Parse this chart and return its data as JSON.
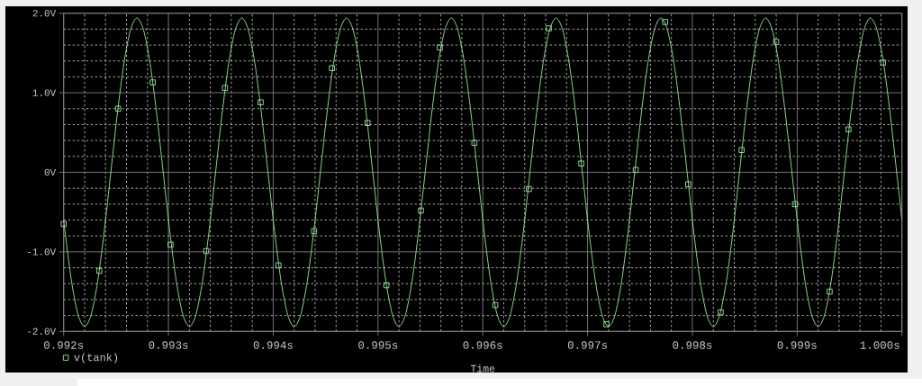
{
  "chart_data": {
    "type": "line",
    "xlabel": "Time",
    "xlim": [
      0.992,
      1.0
    ],
    "ylim": [
      -2.0,
      2.0
    ],
    "xticks": [
      {
        "value": 0.992,
        "label": "0.992s"
      },
      {
        "value": 0.9922,
        "label": null
      },
      {
        "value": 0.9924,
        "label": null
      },
      {
        "value": 0.9926,
        "label": null
      },
      {
        "value": 0.9928,
        "label": null
      },
      {
        "value": 0.993,
        "label": "0.993s"
      },
      {
        "value": 0.9932,
        "label": null
      },
      {
        "value": 0.9934,
        "label": null
      },
      {
        "value": 0.9936,
        "label": null
      },
      {
        "value": 0.9938,
        "label": null
      },
      {
        "value": 0.994,
        "label": "0.994s"
      },
      {
        "value": 0.9942,
        "label": null
      },
      {
        "value": 0.9944,
        "label": null
      },
      {
        "value": 0.9946,
        "label": null
      },
      {
        "value": 0.9948,
        "label": null
      },
      {
        "value": 0.995,
        "label": "0.995s"
      },
      {
        "value": 0.9952,
        "label": null
      },
      {
        "value": 0.9954,
        "label": null
      },
      {
        "value": 0.9956,
        "label": null
      },
      {
        "value": 0.9958,
        "label": null
      },
      {
        "value": 0.996,
        "label": "0.996s"
      },
      {
        "value": 0.9962,
        "label": null
      },
      {
        "value": 0.9964,
        "label": null
      },
      {
        "value": 0.9966,
        "label": null
      },
      {
        "value": 0.9968,
        "label": null
      },
      {
        "value": 0.997,
        "label": "0.997s"
      },
      {
        "value": 0.9972,
        "label": null
      },
      {
        "value": 0.9974,
        "label": null
      },
      {
        "value": 0.9976,
        "label": null
      },
      {
        "value": 0.9978,
        "label": null
      },
      {
        "value": 0.998,
        "label": "0.998s"
      },
      {
        "value": 0.9982,
        "label": null
      },
      {
        "value": 0.9984,
        "label": null
      },
      {
        "value": 0.9986,
        "label": null
      },
      {
        "value": 0.9988,
        "label": null
      },
      {
        "value": 0.999,
        "label": "0.999s"
      },
      {
        "value": 0.9992,
        "label": null
      },
      {
        "value": 0.9994,
        "label": null
      },
      {
        "value": 0.9996,
        "label": null
      },
      {
        "value": 0.9998,
        "label": null
      },
      {
        "value": 1.0,
        "label": "1.000s"
      }
    ],
    "yticks": [
      {
        "value": -2.0,
        "label": "-2.0V"
      },
      {
        "value": -1.8,
        "label": null
      },
      {
        "value": -1.6,
        "label": null
      },
      {
        "value": -1.4,
        "label": null
      },
      {
        "value": -1.2,
        "label": null
      },
      {
        "value": -1.0,
        "label": "-1.0V"
      },
      {
        "value": -0.8,
        "label": null
      },
      {
        "value": -0.6,
        "label": null
      },
      {
        "value": -0.4,
        "label": null
      },
      {
        "value": -0.2,
        "label": null
      },
      {
        "value": 0,
        "label": "0V"
      },
      {
        "value": 0.2,
        "label": null
      },
      {
        "value": 0.4,
        "label": null
      },
      {
        "value": 0.6,
        "label": null
      },
      {
        "value": 0.8,
        "label": null
      },
      {
        "value": 1.0,
        "label": "1.0V"
      },
      {
        "value": 1.2,
        "label": null
      },
      {
        "value": 1.4,
        "label": null
      },
      {
        "value": 1.6,
        "label": null
      },
      {
        "value": 1.8,
        "label": null
      },
      {
        "value": 2.0,
        "label": "2.0V"
      }
    ],
    "grid": true,
    "legend": "bottom left",
    "series": [
      {
        "name": "v(tank)",
        "color": "#9be89b",
        "x": [
          0.992,
          0.9920125,
          0.992075,
          0.9921375,
          0.9922,
          0.9922625,
          0.992325,
          0.9923875,
          0.99245,
          0.9925125,
          0.992575,
          0.9926375,
          0.9927,
          0.9927625,
          0.992825,
          0.9928875,
          0.99295,
          0.9930125,
          0.993075,
          0.9931375,
          0.9932,
          0.9932625,
          0.993325,
          0.9933875,
          0.99345,
          0.9935125,
          0.993575,
          0.9936375,
          0.9937,
          0.9937625,
          0.993825,
          0.9938875,
          0.99395,
          0.9940125,
          0.994075,
          0.9941375,
          0.9942,
          0.9942625,
          0.994325,
          0.9943875,
          0.99445,
          0.9945125,
          0.994575,
          0.9946375,
          0.9947,
          0.9947625,
          0.994825,
          0.9948875,
          0.99495,
          0.9950125,
          0.995075,
          0.9951375,
          0.9952,
          0.9952625,
          0.995325,
          0.9953875,
          0.99545,
          0.9955125,
          0.995575,
          0.9956375,
          0.9957,
          0.9957625,
          0.995825,
          0.9958875,
          0.99595,
          0.9960125,
          0.996075,
          0.9961375,
          0.9962,
          0.9962625,
          0.996325,
          0.9963875,
          0.99645,
          0.9965125,
          0.996575,
          0.9966375,
          0.9967,
          0.9967625,
          0.996825,
          0.9968875,
          0.99695,
          0.9970125,
          0.997075,
          0.9971375,
          0.9972,
          0.9972625,
          0.997325,
          0.9973875,
          0.99745,
          0.9975125,
          0.997575,
          0.9976375,
          0.9977,
          0.9977625,
          0.997825,
          0.9978875,
          0.99795,
          0.9980125,
          0.998075,
          0.9981375,
          0.9982,
          0.9982625,
          0.998325,
          0.9983875,
          0.99845,
          0.9985125,
          0.998575,
          0.9986375,
          0.9987,
          0.9987625,
          0.998825,
          0.9988875,
          0.99895,
          0.9990125,
          0.999075,
          0.9991375,
          0.9992,
          0.9992625,
          0.999325,
          0.9993875,
          0.99945,
          0.9995125,
          0.999575,
          0.9996375,
          0.9997,
          0.9997625,
          0.999825,
          0.9998875,
          0.99995,
          1.0
        ],
        "values": [
          -0.6,
          -0.74,
          -1.37,
          -1.79,
          -1.94,
          -1.79,
          -1.37,
          -0.74,
          0,
          0.74,
          1.37,
          1.79,
          1.94,
          1.79,
          1.37,
          0.74,
          0,
          -0.74,
          -1.37,
          -1.79,
          -1.94,
          -1.79,
          -1.37,
          -0.74,
          0,
          0.74,
          1.37,
          1.79,
          1.94,
          1.79,
          1.37,
          0.74,
          0,
          -0.74,
          -1.37,
          -1.79,
          -1.94,
          -1.79,
          -1.37,
          -0.74,
          0,
          0.74,
          1.37,
          1.79,
          1.94,
          1.79,
          1.37,
          0.74,
          0,
          -0.74,
          -1.37,
          -1.79,
          -1.94,
          -1.79,
          -1.37,
          -0.74,
          0,
          0.74,
          1.37,
          1.79,
          1.94,
          1.79,
          1.37,
          0.74,
          0,
          -0.74,
          -1.37,
          -1.79,
          -1.94,
          -1.79,
          -1.37,
          -0.74,
          0,
          0.74,
          1.37,
          1.79,
          1.94,
          1.79,
          1.37,
          0.74,
          0,
          -0.74,
          -1.37,
          -1.79,
          -1.94,
          -1.79,
          -1.37,
          -0.74,
          0,
          0.74,
          1.37,
          1.79,
          1.94,
          1.79,
          1.37,
          0.74,
          0,
          -0.74,
          -1.37,
          -1.79,
          -1.94,
          -1.79,
          -1.37,
          -0.74,
          0,
          0.74,
          1.37,
          1.79,
          1.94,
          1.79,
          1.37,
          0.74,
          0,
          -0.74,
          -1.37,
          -1.79,
          -1.94,
          -1.79,
          -1.37,
          -0.74,
          0,
          0.74,
          1.37,
          1.79,
          1.94,
          1.79,
          1.37,
          0.74,
          0,
          -0.6
        ]
      },
      {
        "type": "scatter",
        "marker": "square",
        "color": "#9be89b",
        "x": [
          0.992,
          0.99234,
          0.99252,
          0.99285,
          0.99302,
          0.99336,
          0.99354,
          0.99388,
          0.99405,
          0.99439,
          0.99456,
          0.9949,
          0.99508,
          0.99541,
          0.99559,
          0.99592,
          0.99612,
          0.99644,
          0.99663,
          0.99694,
          0.99718,
          0.99746,
          0.99774,
          0.99796,
          0.99827,
          0.99847,
          0.9988,
          0.99898,
          0.99931,
          0.99949,
          0.99982
        ],
        "values": [
          -0.65,
          -1.24,
          0.8,
          1.13,
          -0.91,
          -0.99,
          1.06,
          0.88,
          -1.17,
          -0.74,
          1.31,
          0.62,
          -1.42,
          -0.48,
          1.57,
          0.37,
          -1.67,
          -0.21,
          1.81,
          0.11,
          -1.91,
          0.03,
          1.89,
          -0.15,
          -1.76,
          0.28,
          1.64,
          -0.4,
          -1.5,
          0.54,
          1.38
        ]
      }
    ]
  }
}
